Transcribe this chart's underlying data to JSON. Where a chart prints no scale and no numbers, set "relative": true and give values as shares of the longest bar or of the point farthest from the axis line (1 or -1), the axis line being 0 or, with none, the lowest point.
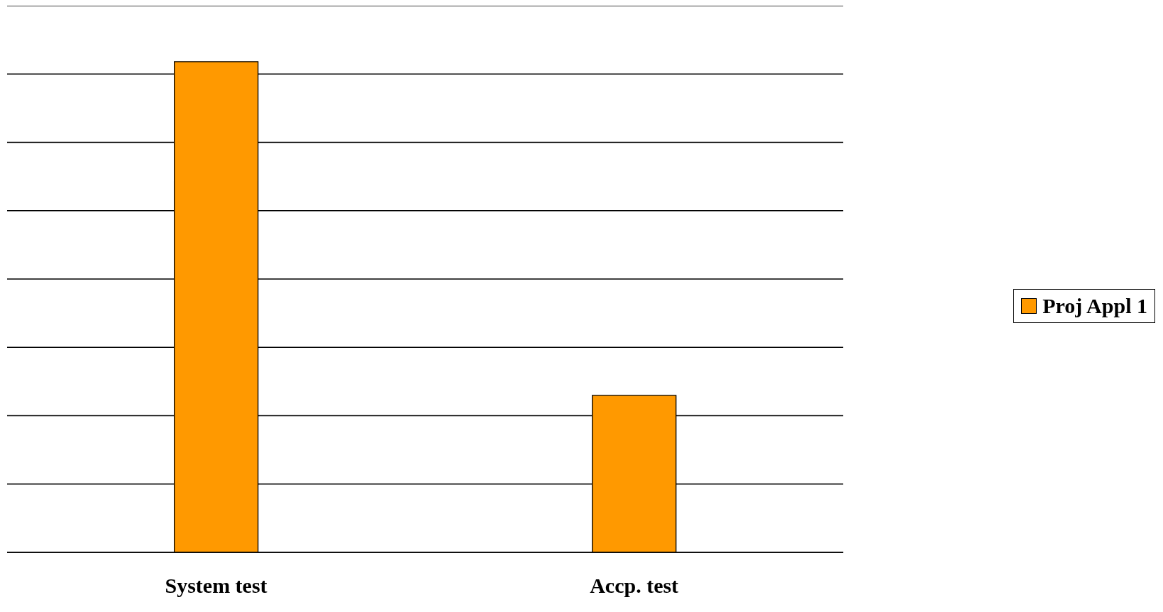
{
  "chart_data": {
    "type": "bar",
    "categories": [
      "System test",
      "Accp. test"
    ],
    "series": [
      {
        "name": "Proj Appl 1",
        "color": "#ff9900",
        "values": [
          1,
          0.32
        ]
      }
    ],
    "relative": true,
    "grid": "y",
    "legend": "right"
  }
}
